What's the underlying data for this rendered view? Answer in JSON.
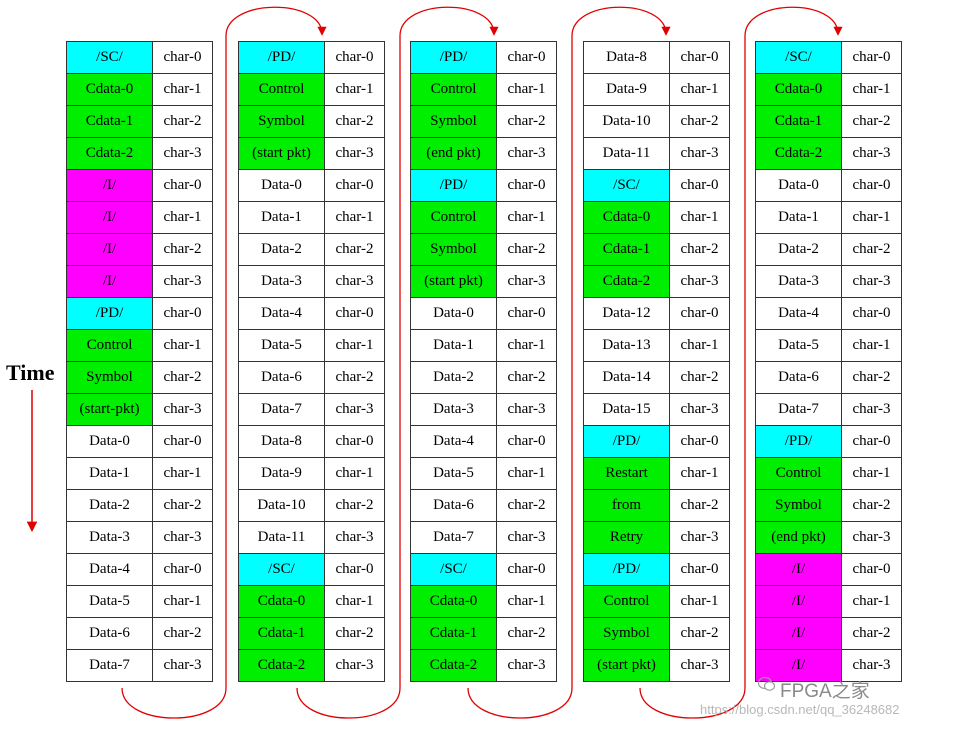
{
  "time_label": "Time",
  "watermark": "FPGA之家",
  "url": "https://blog.csdn.net/qq_36248682",
  "colors": {
    "cyan": "#00ffff",
    "green": "#00ee00",
    "magenta": "#ff00ff",
    "arrow": "#e00000"
  },
  "columns": [
    [
      {
        "name": "/SC/",
        "char": "char-0",
        "color": "cyan"
      },
      {
        "name": "Cdata-0",
        "char": "char-1",
        "color": "green"
      },
      {
        "name": "Cdata-1",
        "char": "char-2",
        "color": "green"
      },
      {
        "name": "Cdata-2",
        "char": "char-3",
        "color": "green"
      },
      {
        "name": "/I/",
        "char": "char-0",
        "color": "magenta"
      },
      {
        "name": "/I/",
        "char": "char-1",
        "color": "magenta"
      },
      {
        "name": "/I/",
        "char": "char-2",
        "color": "magenta"
      },
      {
        "name": "/I/",
        "char": "char-3",
        "color": "magenta"
      },
      {
        "name": "/PD/",
        "char": "char-0",
        "color": "cyan"
      },
      {
        "name": "Control",
        "char": "char-1",
        "color": "green"
      },
      {
        "name": "Symbol",
        "char": "char-2",
        "color": "green"
      },
      {
        "name": "(start-pkt)",
        "char": "char-3",
        "color": "green"
      },
      {
        "name": "Data-0",
        "char": "char-0",
        "color": "white"
      },
      {
        "name": "Data-1",
        "char": "char-1",
        "color": "white"
      },
      {
        "name": "Data-2",
        "char": "char-2",
        "color": "white"
      },
      {
        "name": "Data-3",
        "char": "char-3",
        "color": "white"
      },
      {
        "name": "Data-4",
        "char": "char-0",
        "color": "white"
      },
      {
        "name": "Data-5",
        "char": "char-1",
        "color": "white"
      },
      {
        "name": "Data-6",
        "char": "char-2",
        "color": "white"
      },
      {
        "name": "Data-7",
        "char": "char-3",
        "color": "white"
      }
    ],
    [
      {
        "name": "/PD/",
        "char": "char-0",
        "color": "cyan"
      },
      {
        "name": "Control",
        "char": "char-1",
        "color": "green"
      },
      {
        "name": "Symbol",
        "char": "char-2",
        "color": "green"
      },
      {
        "name": "(start pkt)",
        "char": "char-3",
        "color": "green"
      },
      {
        "name": "Data-0",
        "char": "char-0",
        "color": "white"
      },
      {
        "name": "Data-1",
        "char": "char-1",
        "color": "white"
      },
      {
        "name": "Data-2",
        "char": "char-2",
        "color": "white"
      },
      {
        "name": "Data-3",
        "char": "char-3",
        "color": "white"
      },
      {
        "name": "Data-4",
        "char": "char-0",
        "color": "white"
      },
      {
        "name": "Data-5",
        "char": "char-1",
        "color": "white"
      },
      {
        "name": "Data-6",
        "char": "char-2",
        "color": "white"
      },
      {
        "name": "Data-7",
        "char": "char-3",
        "color": "white"
      },
      {
        "name": "Data-8",
        "char": "char-0",
        "color": "white"
      },
      {
        "name": "Data-9",
        "char": "char-1",
        "color": "white"
      },
      {
        "name": "Data-10",
        "char": "char-2",
        "color": "white"
      },
      {
        "name": "Data-11",
        "char": "char-3",
        "color": "white"
      },
      {
        "name": "/SC/",
        "char": "char-0",
        "color": "cyan"
      },
      {
        "name": "Cdata-0",
        "char": "char-1",
        "color": "green"
      },
      {
        "name": "Cdata-1",
        "char": "char-2",
        "color": "green"
      },
      {
        "name": "Cdata-2",
        "char": "char-3",
        "color": "green"
      }
    ],
    [
      {
        "name": "/PD/",
        "char": "char-0",
        "color": "cyan"
      },
      {
        "name": "Control",
        "char": "char-1",
        "color": "green"
      },
      {
        "name": "Symbol",
        "char": "char-2",
        "color": "green"
      },
      {
        "name": "(end pkt)",
        "char": "char-3",
        "color": "green"
      },
      {
        "name": "/PD/",
        "char": "char-0",
        "color": "cyan"
      },
      {
        "name": "Control",
        "char": "char-1",
        "color": "green"
      },
      {
        "name": "Symbol",
        "char": "char-2",
        "color": "green"
      },
      {
        "name": "(start pkt)",
        "char": "char-3",
        "color": "green"
      },
      {
        "name": "Data-0",
        "char": "char-0",
        "color": "white"
      },
      {
        "name": "Data-1",
        "char": "char-1",
        "color": "white"
      },
      {
        "name": "Data-2",
        "char": "char-2",
        "color": "white"
      },
      {
        "name": "Data-3",
        "char": "char-3",
        "color": "white"
      },
      {
        "name": "Data-4",
        "char": "char-0",
        "color": "white"
      },
      {
        "name": "Data-5",
        "char": "char-1",
        "color": "white"
      },
      {
        "name": "Data-6",
        "char": "char-2",
        "color": "white"
      },
      {
        "name": "Data-7",
        "char": "char-3",
        "color": "white"
      },
      {
        "name": "/SC/",
        "char": "char-0",
        "color": "cyan"
      },
      {
        "name": "Cdata-0",
        "char": "char-1",
        "color": "green"
      },
      {
        "name": "Cdata-1",
        "char": "char-2",
        "color": "green"
      },
      {
        "name": "Cdata-2",
        "char": "char-3",
        "color": "green"
      }
    ],
    [
      {
        "name": "Data-8",
        "char": "char-0",
        "color": "white"
      },
      {
        "name": "Data-9",
        "char": "char-1",
        "color": "white"
      },
      {
        "name": "Data-10",
        "char": "char-2",
        "color": "white"
      },
      {
        "name": "Data-11",
        "char": "char-3",
        "color": "white"
      },
      {
        "name": "/SC/",
        "char": "char-0",
        "color": "cyan"
      },
      {
        "name": "Cdata-0",
        "char": "char-1",
        "color": "green"
      },
      {
        "name": "Cdata-1",
        "char": "char-2",
        "color": "green"
      },
      {
        "name": "Cdata-2",
        "char": "char-3",
        "color": "green"
      },
      {
        "name": "Data-12",
        "char": "char-0",
        "color": "white"
      },
      {
        "name": "Data-13",
        "char": "char-1",
        "color": "white"
      },
      {
        "name": "Data-14",
        "char": "char-2",
        "color": "white"
      },
      {
        "name": "Data-15",
        "char": "char-3",
        "color": "white"
      },
      {
        "name": "/PD/",
        "char": "char-0",
        "color": "cyan"
      },
      {
        "name": "Restart",
        "char": "char-1",
        "color": "green"
      },
      {
        "name": "from",
        "char": "char-2",
        "color": "green"
      },
      {
        "name": "Retry",
        "char": "char-3",
        "color": "green"
      },
      {
        "name": "/PD/",
        "char": "char-0",
        "color": "cyan"
      },
      {
        "name": "Control",
        "char": "char-1",
        "color": "green"
      },
      {
        "name": "Symbol",
        "char": "char-2",
        "color": "green"
      },
      {
        "name": "(start pkt)",
        "char": "char-3",
        "color": "green"
      }
    ],
    [
      {
        "name": "/SC/",
        "char": "char-0",
        "color": "cyan"
      },
      {
        "name": "Cdata-0",
        "char": "char-1",
        "color": "green"
      },
      {
        "name": "Cdata-1",
        "char": "char-2",
        "color": "green"
      },
      {
        "name": "Cdata-2",
        "char": "char-3",
        "color": "green"
      },
      {
        "name": "Data-0",
        "char": "char-0",
        "color": "white"
      },
      {
        "name": "Data-1",
        "char": "char-1",
        "color": "white"
      },
      {
        "name": "Data-2",
        "char": "char-2",
        "color": "white"
      },
      {
        "name": "Data-3",
        "char": "char-3",
        "color": "white"
      },
      {
        "name": "Data-4",
        "char": "char-0",
        "color": "white"
      },
      {
        "name": "Data-5",
        "char": "char-1",
        "color": "white"
      },
      {
        "name": "Data-6",
        "char": "char-2",
        "color": "white"
      },
      {
        "name": "Data-7",
        "char": "char-3",
        "color": "white"
      },
      {
        "name": "/PD/",
        "char": "char-0",
        "color": "cyan"
      },
      {
        "name": "Control",
        "char": "char-1",
        "color": "green"
      },
      {
        "name": "Symbol",
        "char": "char-2",
        "color": "green"
      },
      {
        "name": "(end pkt)",
        "char": "char-3",
        "color": "green"
      },
      {
        "name": "/I/",
        "char": "char-0",
        "color": "magenta"
      },
      {
        "name": "/I/",
        "char": "char-1",
        "color": "magenta"
      },
      {
        "name": "/I/",
        "char": "char-2",
        "color": "magenta"
      },
      {
        "name": "/I/",
        "char": "char-3",
        "color": "magenta"
      }
    ]
  ]
}
